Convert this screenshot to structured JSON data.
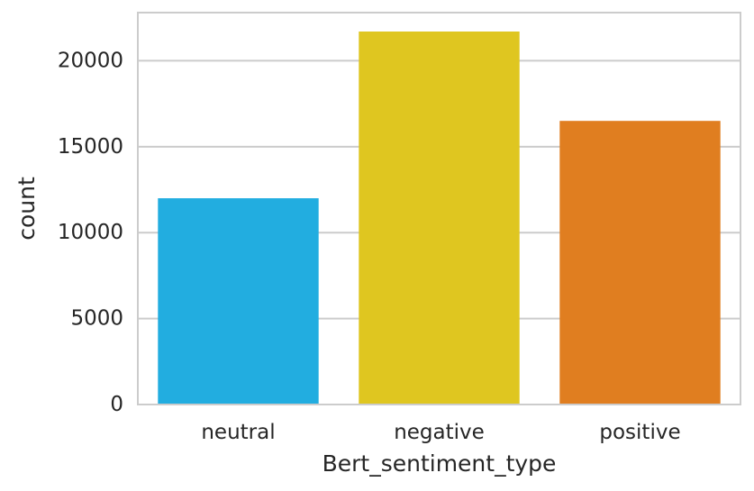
{
  "chart_data": {
    "type": "bar",
    "title": "",
    "xlabel": "Bert_sentiment_type",
    "ylabel": "count",
    "categories": [
      "neutral",
      "negative",
      "positive"
    ],
    "values": [
      12000,
      21700,
      16500
    ],
    "colors": [
      "#22ade0",
      "#dfc620",
      "#e07e20"
    ],
    "ylim": [
      0,
      22800
    ],
    "yticks": [
      0,
      5000,
      10000,
      15000,
      20000
    ],
    "ytick_labels": [
      "0",
      "5000",
      "10000",
      "15000",
      "20000"
    ],
    "grid": "horizontal",
    "legend": "none",
    "style": {
      "background": "#ffffff",
      "grid_color": "#cccccc",
      "spine_color": "#cccccc",
      "text_color": "#262626"
    }
  }
}
